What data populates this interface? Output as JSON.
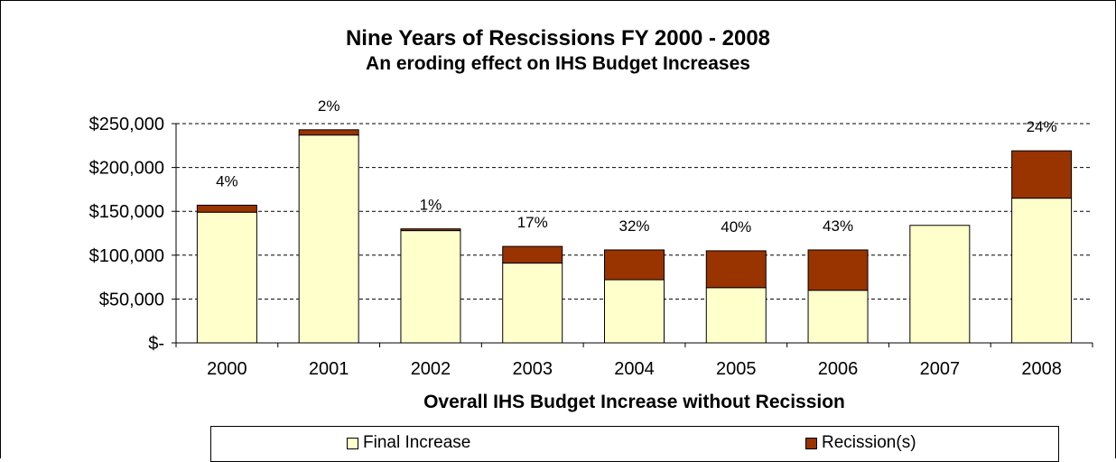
{
  "chart_data": {
    "type": "bar",
    "stacked": true,
    "title": "Nine Years  of Rescissions FY 2000 - 2008",
    "subtitle": "An eroding effect on IHS Budget Increases",
    "xlabel": "Overall IHS Budget Increase without Recission",
    "ylabel": "",
    "ylim": [
      0,
      250000
    ],
    "y_ticks": [
      0,
      50000,
      100000,
      150000,
      200000,
      250000
    ],
    "y_tick_labels": [
      "$-",
      "$50,000",
      "$100,000",
      "$150,000",
      "$200,000",
      "$250,000"
    ],
    "grid": true,
    "legend_position": "bottom",
    "categories": [
      "2000",
      "2001",
      "2002",
      "2003",
      "2004",
      "2005",
      "2006",
      "2007",
      "2008"
    ],
    "series": [
      {
        "name": "Final Increase",
        "color": "#FFFFCC",
        "values": [
          149000,
          237000,
          128000,
          91000,
          72000,
          63000,
          60000,
          134000,
          165000
        ]
      },
      {
        "name": "Recission(s)",
        "color": "#993300",
        "values": [
          8000,
          6000,
          2000,
          19000,
          34000,
          42000,
          46000,
          0,
          54000
        ]
      }
    ],
    "data_labels": [
      "4%",
      "2%",
      "1%",
      "17%",
      "32%",
      "40%",
      "43%",
      "",
      "24%"
    ]
  }
}
